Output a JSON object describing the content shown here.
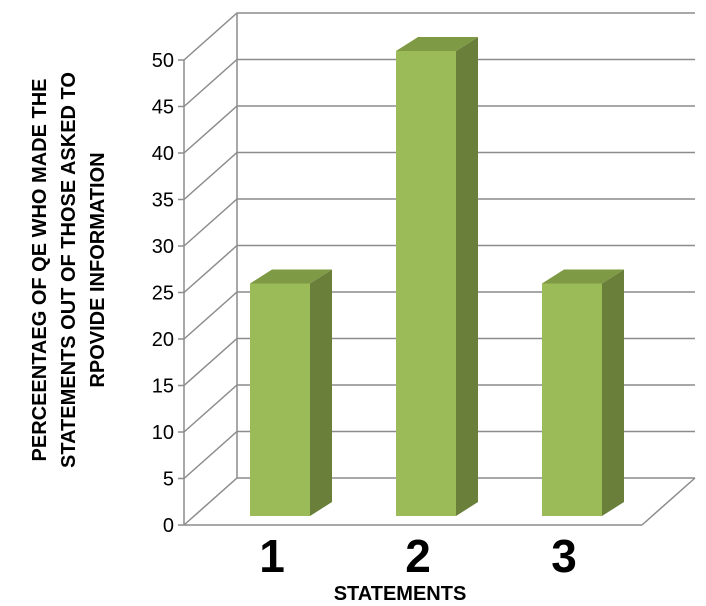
{
  "chart_data": {
    "type": "bar",
    "categories": [
      "1",
      "2",
      "3"
    ],
    "values": [
      25,
      50,
      25
    ],
    "title": "",
    "xlabel": "STATEMENTS",
    "ylabel_lines": [
      "PERCEENTAEG OF QE WHO MADE THE",
      "STATEMENTS OUT OF THOSE ASKED TO",
      "RPOVIDE INFORMATION"
    ],
    "ylim": [
      0,
      50
    ],
    "yticks": [
      0,
      5,
      10,
      15,
      20,
      25,
      30,
      35,
      40,
      45,
      50
    ],
    "grid": true,
    "legend": "none",
    "style": "3d-column",
    "colors": {
      "bar_front": "#9bbb59",
      "bar_side": "#6a7f3a",
      "bar_top": "#7f9a45",
      "grid": "#8c8c8c"
    }
  }
}
